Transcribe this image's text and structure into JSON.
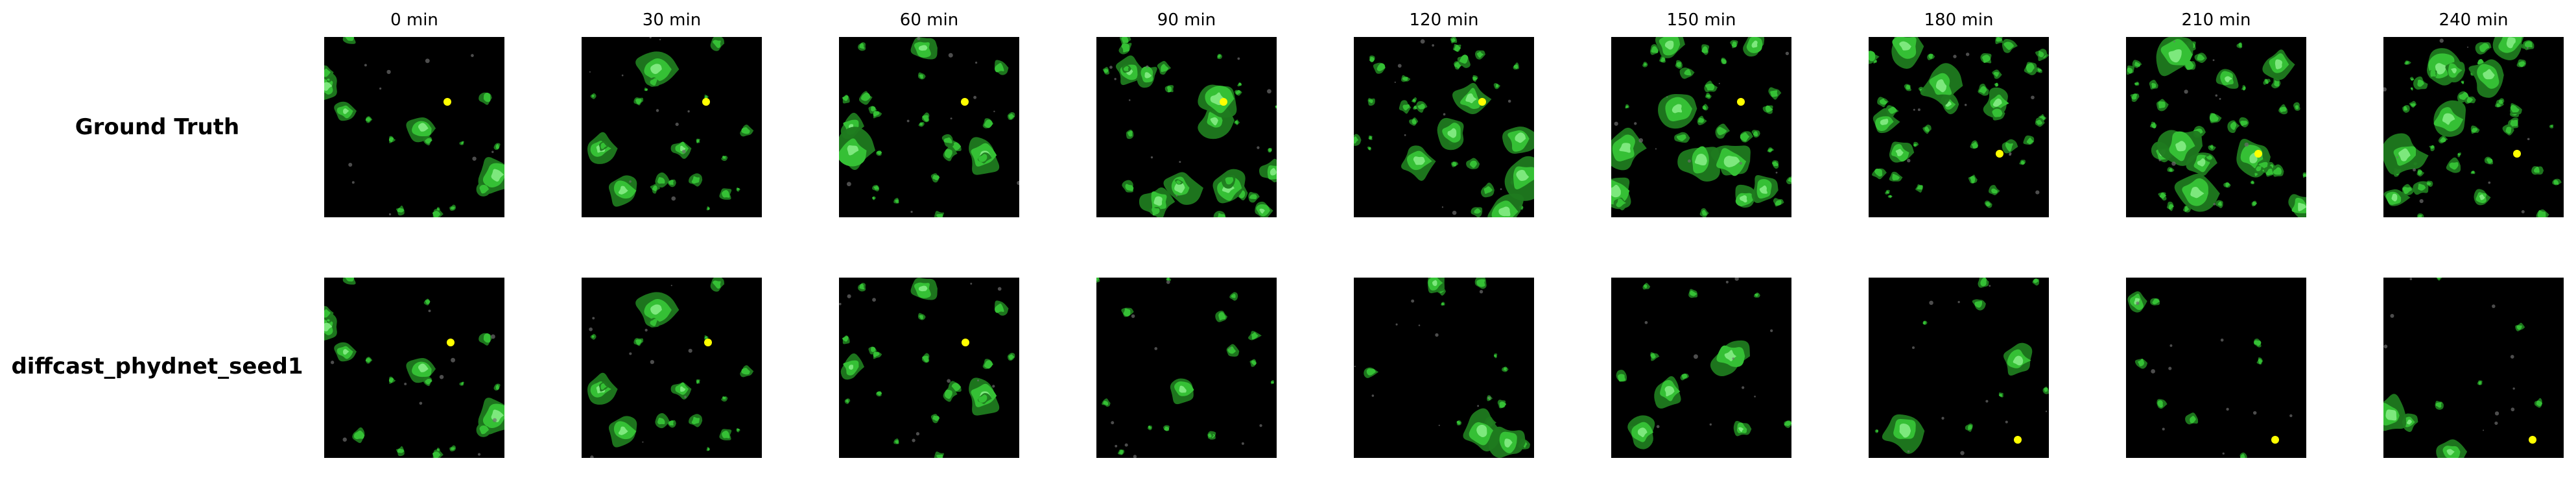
{
  "time_labels": [
    "0 min",
    "30 min",
    "60 min",
    "90 min",
    "120 min",
    "150 min",
    "180 min",
    "210 min",
    "240 min"
  ],
  "rows": [
    {
      "label": "Ground Truth"
    },
    {
      "label": "diffcast_phydnet_seed1"
    }
  ],
  "colors": {
    "background": "#000000",
    "echo_low": "#1f7a1f",
    "echo_mid": "#35c035",
    "echo_high": "#7de87d",
    "echo_core": "#ffff00",
    "noise": "#6e6e6e"
  }
}
